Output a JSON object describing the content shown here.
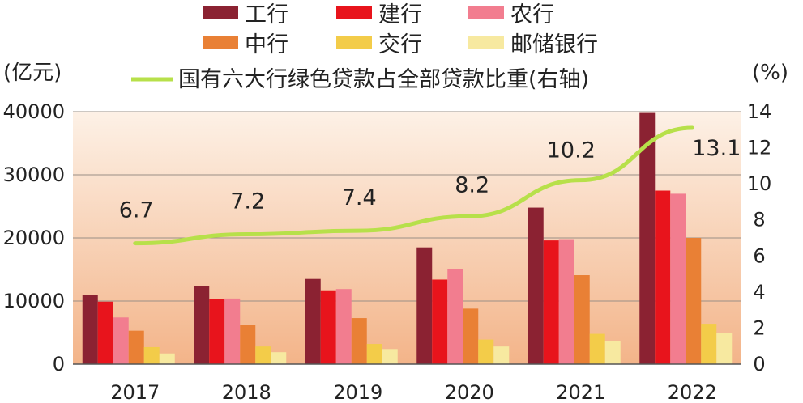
{
  "chart_data": {
    "type": "bar",
    "categories": [
      "2017",
      "2018",
      "2019",
      "2020",
      "2021",
      "2022"
    ],
    "series": [
      {
        "name": "工行",
        "color": "#8b2232",
        "values": [
          10900,
          12400,
          13500,
          18500,
          24800,
          39800
        ]
      },
      {
        "name": "建行",
        "color": "#e8141c",
        "values": [
          9900,
          10300,
          11700,
          13400,
          19600,
          27500
        ]
      },
      {
        "name": "农行",
        "color": "#f27d8f",
        "values": [
          7400,
          10400,
          11900,
          15100,
          19800,
          27000
        ]
      },
      {
        "name": "中行",
        "color": "#e98035",
        "values": [
          5300,
          6200,
          7300,
          8800,
          14100,
          20000
        ]
      },
      {
        "name": "交行",
        "color": "#f3cc49",
        "values": [
          2700,
          2800,
          3200,
          3900,
          4800,
          6400
        ]
      },
      {
        "name": "邮储银行",
        "color": "#f7e9a0",
        "values": [
          1700,
          1900,
          2400,
          2800,
          3700,
          5000
        ]
      }
    ],
    "line": {
      "name": "国有六大行绿色贷款占全部贷款比重(右轴)",
      "color": "#b7e04a",
      "values": [
        6.7,
        7.2,
        7.4,
        8.2,
        10.2,
        13.1
      ],
      "labels": [
        "6.7",
        "7.2",
        "7.4",
        "8.2",
        "10.2",
        "13.1"
      ]
    },
    "y_left": {
      "unit": "(亿元)",
      "ylim": [
        0,
        40000
      ],
      "ticks": [
        0,
        10000,
        20000,
        30000,
        40000
      ],
      "tick_labels": [
        "0",
        "10000",
        "20000",
        "30000",
        "40000"
      ]
    },
    "y_right": {
      "unit": "(%)",
      "ylim": [
        0,
        14
      ],
      "ticks": [
        0,
        2,
        4,
        6,
        8,
        10,
        12,
        14
      ],
      "tick_labels": [
        "0",
        "2",
        "4",
        "6",
        "8",
        "10",
        "12",
        "14"
      ]
    },
    "title": "",
    "xlabel": "",
    "grid": true,
    "legend_position": "top",
    "background_gradient": [
      "#fdf1e6",
      "#f3b489"
    ]
  }
}
